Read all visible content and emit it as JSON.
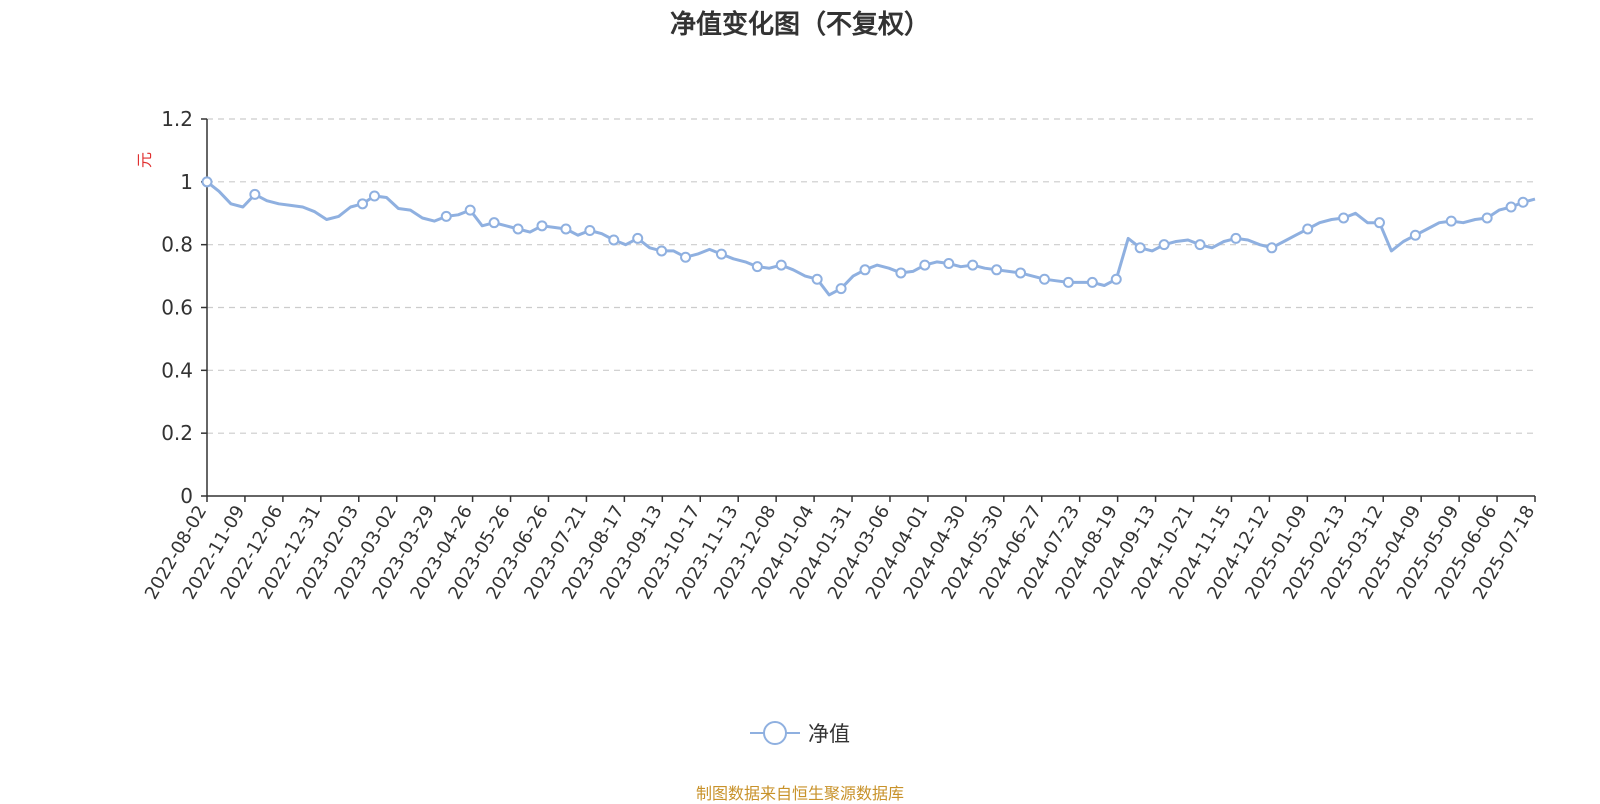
{
  "chart_data": {
    "type": "line",
    "title": "净值变化图（不复权）",
    "ylabel": "元",
    "ylim": [
      0,
      1.2
    ],
    "yticks": [
      "0",
      "0.2",
      "0.4",
      "0.6",
      "0.8",
      "1",
      "1.2"
    ],
    "grid": true,
    "legend_position": "bottom-center",
    "x_tick_labels": [
      "2022-08-02",
      "2022-11-09",
      "2022-12-06",
      "2022-12-31",
      "2023-02-03",
      "2023-03-02",
      "2023-03-29",
      "2023-04-26",
      "2023-05-26",
      "2023-06-26",
      "2023-07-21",
      "2023-08-17",
      "2023-09-13",
      "2023-10-17",
      "2023-11-13",
      "2023-12-08",
      "2024-01-04",
      "2024-01-31",
      "2024-03-06",
      "2024-04-01",
      "2024-04-30",
      "2024-05-30",
      "2024-06-27",
      "2024-07-23",
      "2024-08-19",
      "2024-09-13",
      "2024-10-21",
      "2024-11-15",
      "2024-12-12",
      "2025-01-09",
      "2025-02-13",
      "2025-03-12",
      "2025-04-09",
      "2025-05-09",
      "2025-06-06",
      "2025-07-18"
    ],
    "series": [
      {
        "name": "净值",
        "color": "#8fb0e0",
        "values": [
          1.0,
          0.97,
          0.93,
          0.92,
          0.96,
          0.94,
          0.93,
          0.925,
          0.92,
          0.905,
          0.88,
          0.89,
          0.92,
          0.93,
          0.955,
          0.95,
          0.915,
          0.91,
          0.885,
          0.875,
          0.89,
          0.895,
          0.91,
          0.86,
          0.87,
          0.86,
          0.85,
          0.84,
          0.86,
          0.855,
          0.85,
          0.83,
          0.845,
          0.835,
          0.815,
          0.8,
          0.82,
          0.79,
          0.78,
          0.78,
          0.76,
          0.77,
          0.785,
          0.77,
          0.755,
          0.745,
          0.73,
          0.725,
          0.735,
          0.72,
          0.7,
          0.69,
          0.64,
          0.66,
          0.7,
          0.72,
          0.735,
          0.725,
          0.71,
          0.715,
          0.735,
          0.745,
          0.74,
          0.73,
          0.735,
          0.725,
          0.72,
          0.715,
          0.71,
          0.7,
          0.69,
          0.685,
          0.68,
          0.68,
          0.68,
          0.67,
          0.69,
          0.82,
          0.79,
          0.78,
          0.8,
          0.81,
          0.815,
          0.8,
          0.79,
          0.81,
          0.82,
          0.815,
          0.8,
          0.79,
          0.81,
          0.83,
          0.85,
          0.87,
          0.88,
          0.885,
          0.9,
          0.87,
          0.87,
          0.78,
          0.81,
          0.83,
          0.85,
          0.87,
          0.875,
          0.87,
          0.88,
          0.885,
          0.91,
          0.92,
          0.935,
          0.945
        ]
      }
    ],
    "markers": [
      0,
      4,
      13,
      14,
      20,
      22,
      24,
      26,
      28,
      30,
      32,
      34,
      36,
      38,
      40,
      43,
      46,
      48,
      51,
      53,
      55,
      58,
      60,
      62,
      64,
      66,
      68,
      70,
      72,
      74,
      76,
      78,
      80,
      83,
      86,
      89,
      92,
      95,
      98,
      101,
      104,
      107,
      109,
      110
    ]
  },
  "legend": {
    "label": "净值"
  },
  "footer": {
    "source": "制图数据来自恒生聚源数据库"
  }
}
